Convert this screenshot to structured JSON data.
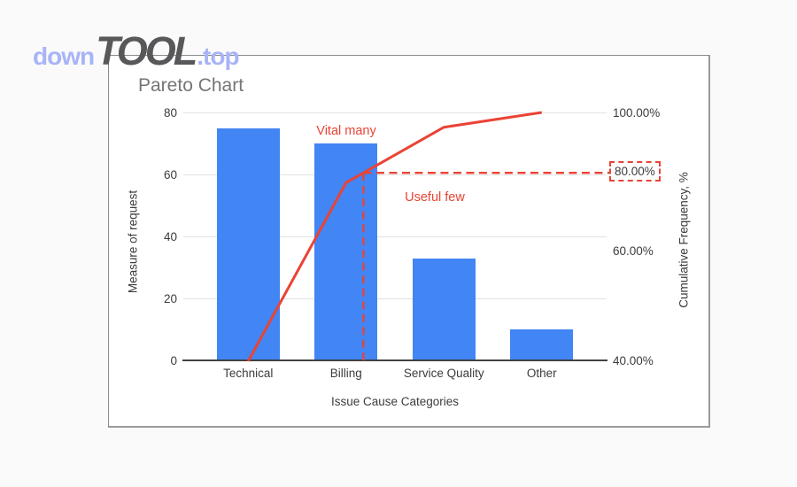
{
  "watermark": {
    "down": "down",
    "tool": "TOOL",
    "top": ".top"
  },
  "chart": {
    "title": "Pareto Chart",
    "x_axis_title": "Issue Cause Categories",
    "y_left_title": "Measure of request",
    "y_right_title": "Cumulative Frequency, %"
  },
  "annotations": {
    "vital_many": "Vital many",
    "useful_few": "Useful few"
  },
  "colors": {
    "bar": "#4285f4",
    "red": "#ea4335",
    "grid": "#e2e2e2",
    "baseline": "#424242",
    "axis_text": "#3c3c3c",
    "title_text": "#757575",
    "watermark_blue": "#a8b4f7",
    "watermark_gray": "#58585b",
    "card_border": "#8a8a8a",
    "background": "#fafafa"
  },
  "chart_data": {
    "type": "bar",
    "subtype": "pareto-with-cumulative-line",
    "title": "Pareto Chart",
    "xlabel": "Issue Cause Categories",
    "ylabel_left": "Measure of request",
    "ylabel_right": "Cumulative Frequency, %",
    "categories": [
      "Technical",
      "Billing",
      "Service Quality",
      "Other"
    ],
    "values": [
      75,
      70,
      33,
      10
    ],
    "cumulative_pct": [
      39.89,
      77.13,
      94.68,
      100
    ],
    "left_axis": {
      "ticks": [
        0,
        20,
        40,
        60,
        80
      ],
      "range": [
        0,
        80
      ]
    },
    "right_axis": {
      "tick_labels": [
        "40.00%",
        "60.00%",
        "80.00%",
        "100.00%"
      ],
      "tick_values": [
        40,
        60,
        80,
        100
      ],
      "range": [
        40,
        100
      ],
      "scale": "log"
    },
    "threshold_pct": 80,
    "threshold_label": "80.00%",
    "grid": true,
    "legend": "none"
  }
}
